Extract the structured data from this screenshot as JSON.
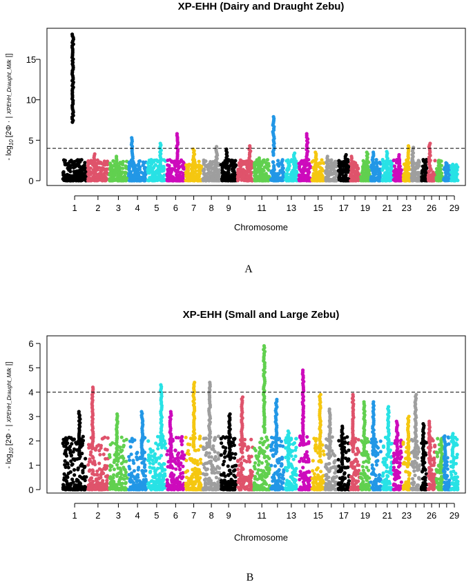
{
  "chromosome_colors": [
    "#000000",
    "#DF536B",
    "#61D04F",
    "#2297E6",
    "#28E2E5",
    "#CD0BBC",
    "#F5C710",
    "#9E9E9E"
  ],
  "chart_data": [
    {
      "type": "scatter",
      "title": "XP-EHH (Dairy and Draught Zebu)",
      "xlabel": "Chromosome",
      "ylabel": "- log10 [2Φ · | XPEHH_Draught_Milk |]",
      "ylim": [
        0,
        18.5
      ],
      "yticks": [
        0,
        5,
        10,
        15
      ],
      "threshold": 4,
      "chromosomes": [
        1,
        2,
        3,
        4,
        5,
        6,
        7,
        8,
        9,
        10,
        11,
        12,
        13,
        14,
        15,
        16,
        17,
        18,
        19,
        20,
        21,
        22,
        23,
        24,
        25,
        26,
        27,
        28,
        29
      ],
      "xtick_labels": [
        "1",
        "2",
        "3",
        "4",
        "5",
        "6",
        "7",
        "8",
        "9",
        "11",
        "13",
        "15",
        "17",
        "19",
        "21",
        "23",
        "26",
        "29"
      ],
      "chromosome_max": [
        18.1,
        3.3,
        3.0,
        5.3,
        4.6,
        5.8,
        3.9,
        4.2,
        3.9,
        4.3,
        2.8,
        7.9,
        3.4,
        5.8,
        3.5,
        3.0,
        3.2,
        3.0,
        3.5,
        3.5,
        3.6,
        3.2,
        4.3,
        4.1,
        2.6,
        4.6,
        2.5,
        2.2,
        2.0
      ],
      "caption": "A"
    },
    {
      "type": "scatter",
      "title": "XP-EHH (Small and Large Zebu)",
      "xlabel": "Chromosome",
      "ylabel": "- log10 [2Φ · | XPEHH_Draught_Milk |]",
      "ylim": [
        0,
        6.2
      ],
      "yticks": [
        0,
        1,
        2,
        3,
        4,
        5,
        6
      ],
      "threshold": 4,
      "chromosomes": [
        1,
        2,
        3,
        4,
        5,
        6,
        7,
        8,
        9,
        10,
        11,
        12,
        13,
        14,
        15,
        16,
        17,
        18,
        19,
        20,
        21,
        22,
        23,
        24,
        25,
        26,
        27,
        28,
        29
      ],
      "xtick_labels": [
        "1",
        "2",
        "3",
        "4",
        "5",
        "6",
        "7",
        "8",
        "9",
        "11",
        "13",
        "15",
        "17",
        "19",
        "21",
        "23",
        "26",
        "29"
      ],
      "chromosome_max": [
        3.2,
        4.2,
        3.1,
        3.2,
        4.3,
        3.2,
        4.4,
        4.4,
        3.1,
        3.8,
        5.9,
        3.7,
        2.4,
        4.9,
        3.9,
        3.3,
        2.6,
        3.9,
        3.6,
        3.6,
        3.4,
        2.8,
        3.0,
        3.9,
        2.7,
        2.8,
        2.1,
        2.2,
        2.3
      ],
      "caption": "B"
    }
  ]
}
